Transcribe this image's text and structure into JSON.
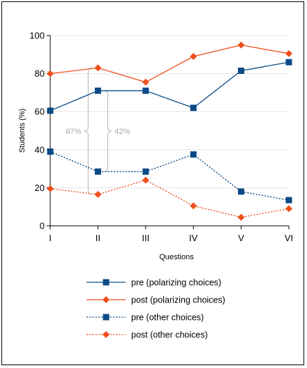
{
  "chart_data": {
    "type": "line",
    "categories": [
      "I",
      "II",
      "III",
      "IV",
      "V",
      "VI"
    ],
    "xlabel": "Questions",
    "ylabel": "Students (%)",
    "ylim": [
      0,
      100
    ],
    "yticks": [
      0,
      20,
      40,
      60,
      80,
      100
    ],
    "grid": true,
    "legend_position": "bottom",
    "series": [
      {
        "name": "pre (polarizing choices)",
        "values": [
          60.5,
          71,
          71,
          62,
          81.5,
          86
        ],
        "color": "#0a4a86",
        "marker": "square",
        "line": "solid"
      },
      {
        "name": "post (polarizing choices)",
        "values": [
          80,
          83,
          75.5,
          89,
          95,
          90.5
        ],
        "color": "#f04e1a",
        "marker": "diamond",
        "line": "solid"
      },
      {
        "name": "pre (other choices)",
        "values": [
          39,
          28.5,
          28.5,
          37.5,
          18,
          13.5
        ],
        "color": "#0a4a86",
        "marker": "square",
        "line": "dotted"
      },
      {
        "name": "post (other choices)",
        "values": [
          19.5,
          16.5,
          24,
          10.5,
          4.5,
          9
        ],
        "color": "#f04e1a",
        "marker": "diamond",
        "line": "dotted"
      }
    ],
    "annotations": [
      {
        "text": "67%",
        "category": "II",
        "side": "left",
        "from": 16.5,
        "to": 83
      },
      {
        "text": "42%",
        "category": "II",
        "side": "right",
        "from": 28.5,
        "to": 71
      }
    ]
  }
}
